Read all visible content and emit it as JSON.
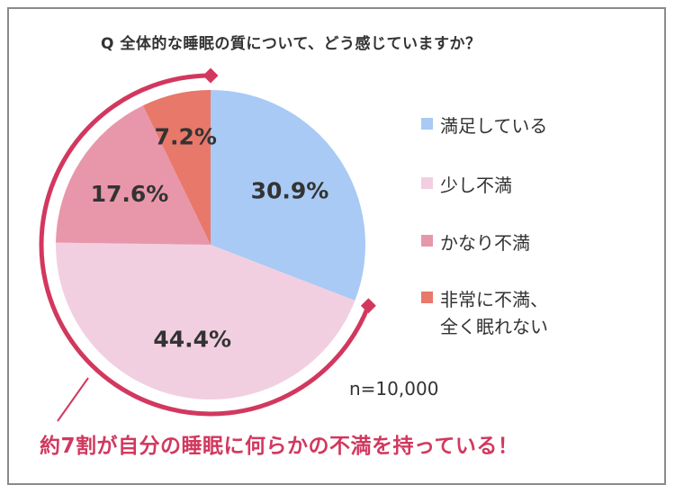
{
  "title": "Q 全体的な睡眠の質について、どう感じていますか？",
  "chart_data": {
    "type": "pie",
    "title": "Q 全体的な睡眠の質について、どう感じていますか？",
    "slices": [
      {
        "label": "満足している",
        "value": 30.9,
        "display": "30.9%",
        "color": "#a8caf5"
      },
      {
        "label": "少し不満",
        "value": 44.4,
        "display": "44.4%",
        "color": "#f1cfe0"
      },
      {
        "label": "かなり不満",
        "value": 17.6,
        "display": "17.6%",
        "color": "#e897ab"
      },
      {
        "label": "非常に不満、\n全く眠れない",
        "value": 7.2,
        "display": "7.2%",
        "color": "#e8786a"
      }
    ],
    "legend_position": "right"
  },
  "legend": {
    "items": [
      {
        "label": "満足している",
        "color": "#a8caf5"
      },
      {
        "label": "少し不満",
        "color": "#f1cfe0"
      },
      {
        "label": "かなり不満",
        "color": "#e897ab"
      },
      {
        "label": "非常に不満、\n全く眠れない",
        "color": "#e8786a"
      }
    ]
  },
  "sample_size": "n=10,000",
  "callout": "約7割が自分の睡眠に何らかの不満を持っている！",
  "accent_color": "#d2385e"
}
